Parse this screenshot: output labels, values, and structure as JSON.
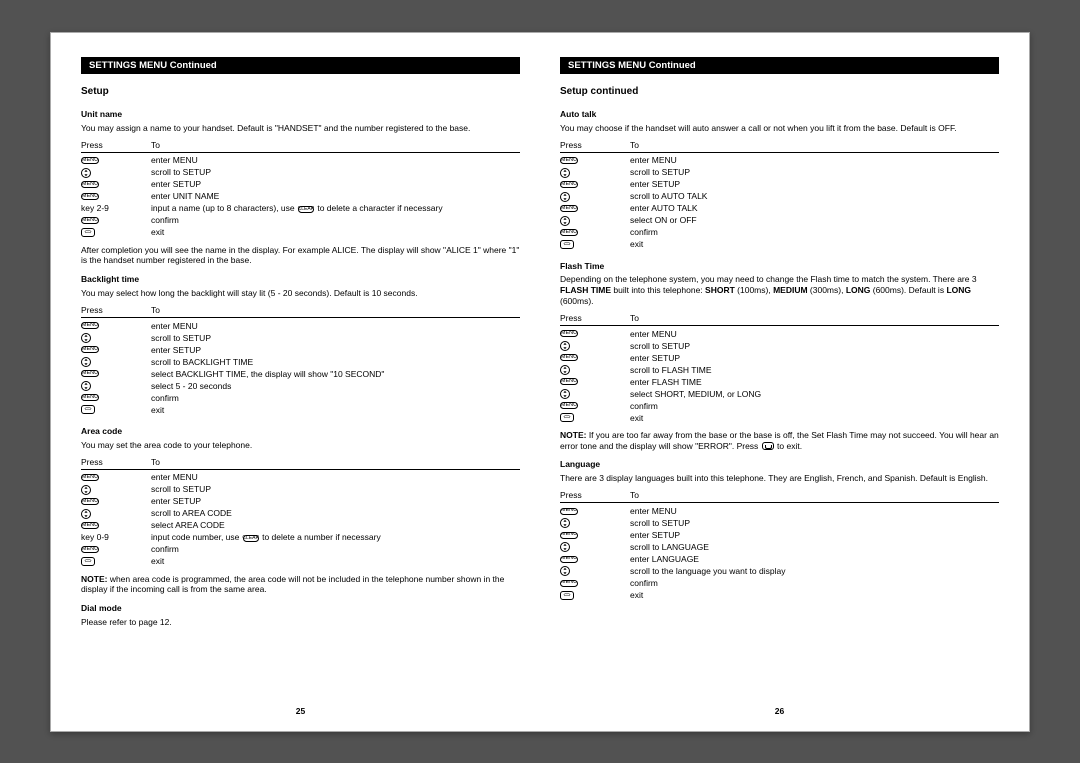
{
  "left": {
    "header": "SETTINGS MENU Continued",
    "title": "Setup",
    "pageNumber": "25",
    "sections": [
      {
        "title": "Unit name",
        "intro": "You may assign a name to your handset. Default is \"HANDSET\" and the number registered to the base.",
        "pressLabel": "Press",
        "toLabel": "To",
        "steps": [
          {
            "icon": "menu",
            "label": "",
            "to": "enter MENU"
          },
          {
            "icon": "updown",
            "label": "",
            "to": "scroll to SETUP"
          },
          {
            "icon": "menu",
            "label": "",
            "to": "enter SETUP"
          },
          {
            "icon": "menu",
            "label": "",
            "to": "enter UNIT NAME"
          },
          {
            "icon": "text",
            "label": "key 2-9",
            "to": "input a name (up to 8 characters), use",
            "inlineIcon": "clear",
            "after": "to delete a character if necessary"
          },
          {
            "icon": "menu",
            "label": "",
            "to": "confirm"
          },
          {
            "icon": "end",
            "label": "",
            "to": "exit"
          }
        ],
        "footer": "After completion you will see the name in the display. For example ALICE. The display will show \"ALICE 1\" where \"1\" is the handset number registered in the base."
      },
      {
        "title": "Backlight time",
        "intro": "You may select how long the backlight will stay lit (5 - 20 seconds). Default is 10 seconds.",
        "pressLabel": "Press",
        "toLabel": "To",
        "steps": [
          {
            "icon": "menu",
            "label": "",
            "to": "enter MENU"
          },
          {
            "icon": "updown",
            "label": "",
            "to": "scroll to SETUP"
          },
          {
            "icon": "menu",
            "label": "",
            "to": "enter SETUP"
          },
          {
            "icon": "updown",
            "label": "",
            "to": "scroll to BACKLIGHT TIME"
          },
          {
            "icon": "menu",
            "label": "",
            "to": "select BACKLIGHT TIME, the display will show \"10 SECOND\""
          },
          {
            "icon": "updown",
            "label": "",
            "to": "select 5 - 20 seconds"
          },
          {
            "icon": "menu",
            "label": "",
            "to": "confirm"
          },
          {
            "icon": "end",
            "label": "",
            "to": "exit"
          }
        ]
      },
      {
        "title": "Area code",
        "intro": "You may set the area code to your telephone.",
        "pressLabel": "Press",
        "toLabel": "To",
        "steps": [
          {
            "icon": "menu",
            "label": "",
            "to": "enter MENU"
          },
          {
            "icon": "updown",
            "label": "",
            "to": "scroll to SETUP"
          },
          {
            "icon": "menu",
            "label": "",
            "to": "enter SETUP"
          },
          {
            "icon": "updown",
            "label": "",
            "to": "scroll to AREA CODE"
          },
          {
            "icon": "menu",
            "label": "",
            "to": "select AREA CODE"
          },
          {
            "icon": "text",
            "label": "key 0-9",
            "to": "input code number, use",
            "inlineIcon": "clear",
            "after": "to delete a number if necessary"
          },
          {
            "icon": "menu",
            "label": "",
            "to": "confirm"
          },
          {
            "icon": "end",
            "label": "",
            "to": "exit"
          }
        ],
        "noteLabel": "NOTE:",
        "note": " when area  code is programmed, the area code will not be included in the telephone number shown in the display if the incoming call is from the same area."
      },
      {
        "title": "Dial mode",
        "intro": "Please refer to page 12."
      }
    ]
  },
  "right": {
    "header": "SETTINGS MENU Continued",
    "title": "Setup continued",
    "pageNumber": "26",
    "sections": [
      {
        "title": "Auto talk",
        "intro": "You may choose if the handset will auto answer a call or not when you lift it from the base. Default is OFF.",
        "pressLabel": "Press",
        "toLabel": "To",
        "steps": [
          {
            "icon": "menu",
            "label": "",
            "to": "enter MENU"
          },
          {
            "icon": "updown",
            "label": "",
            "to": "scroll to SETUP"
          },
          {
            "icon": "menu",
            "label": "",
            "to": "enter SETUP"
          },
          {
            "icon": "updown",
            "label": "",
            "to": "scroll to AUTO TALK"
          },
          {
            "icon": "menu",
            "label": "",
            "to": "enter AUTO TALK"
          },
          {
            "icon": "updown",
            "label": "",
            "to": "select ON or OFF"
          },
          {
            "icon": "menu",
            "label": "",
            "to": "confirm"
          },
          {
            "icon": "end",
            "label": "",
            "to": "exit"
          }
        ]
      },
      {
        "title": "Flash Time",
        "introHtml": "Depending on the telephone system, you may need to change the Flash time to match the system. There are 3 <b>FLASH TIME</b> built into this telephone: <b>SHORT</b> (100ms), <b>MEDIUM</b>  (300ms), <b>LONG</b> (600ms). Default is <b>LONG</b> (600ms).",
        "pressLabel": "Press",
        "toLabel": "To",
        "steps": [
          {
            "icon": "menu",
            "label": "",
            "to": "enter MENU"
          },
          {
            "icon": "updown",
            "label": "",
            "to": "scroll to SETUP"
          },
          {
            "icon": "menu",
            "label": "",
            "to": "enter SETUP"
          },
          {
            "icon": "updown",
            "label": "",
            "to": "scroll to FLASH TIME"
          },
          {
            "icon": "menu",
            "label": "",
            "to": "enter FLASH TIME"
          },
          {
            "icon": "updown",
            "label": "",
            "to": "select SHORT, MEDIUM, or LONG"
          },
          {
            "icon": "menu",
            "label": "",
            "to": "confirm"
          },
          {
            "icon": "end",
            "label": "",
            "to": "exit"
          }
        ],
        "noteLabel": "NOTE:",
        "noteHtml": " If you are too far away from the base or the base is off, the Set Flash Time may not succeed. You will hear an error tone and the display will show \"ERROR\". Press <span class='inline-end'></span>  to exit."
      },
      {
        "title": "Language",
        "intro": "There are 3 display languages built into this telephone. They are English, French, and Spanish. Default is English.",
        "pressLabel": "Press",
        "toLabel": "To",
        "steps": [
          {
            "icon": "menu",
            "label": "",
            "to": "enter MENU"
          },
          {
            "icon": "updown",
            "label": "",
            "to": "scroll to SETUP"
          },
          {
            "icon": "menu",
            "label": "",
            "to": "enter SETUP"
          },
          {
            "icon": "updown",
            "label": "",
            "to": "scroll to LANGUAGE"
          },
          {
            "icon": "menu",
            "label": "",
            "to": "enter LANGUAGE"
          },
          {
            "icon": "updown",
            "label": "",
            "to": "scroll to the language you want to display"
          },
          {
            "icon": "menu",
            "label": "",
            "to": "confirm"
          },
          {
            "icon": "end",
            "label": "",
            "to": "exit"
          }
        ]
      }
    ]
  },
  "iconGlyphs": {
    "menu": "MENU",
    "clear": "CLEAR"
  }
}
